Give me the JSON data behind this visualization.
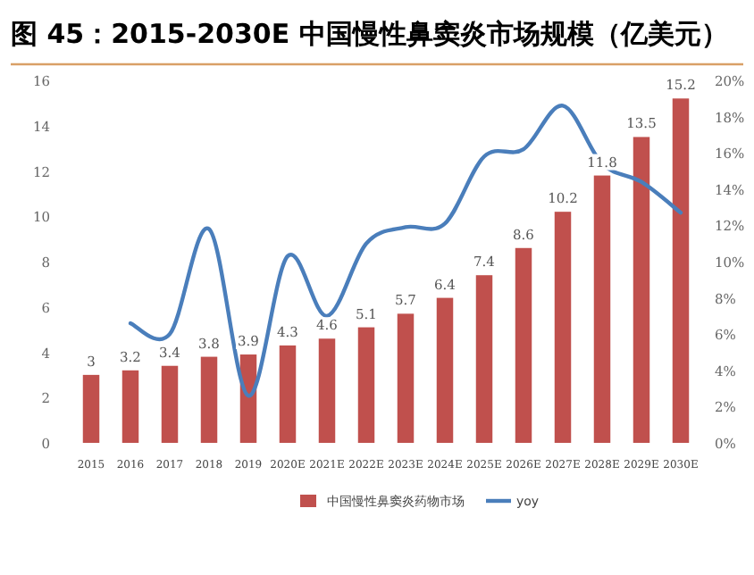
{
  "chart_data": {
    "type": "bar",
    "title": "图 45：2015-2030E 中国慢性鼻窦炎市场规模（亿美元）",
    "categories": [
      "2015",
      "2016",
      "2017",
      "2018",
      "2019",
      "2020E",
      "2021E",
      "2022E",
      "2023E",
      "2024E",
      "2025E",
      "2026E",
      "2027E",
      "2028E",
      "2029E",
      "2030E"
    ],
    "series": [
      {
        "name": "中国慢性鼻窦炎药物市场",
        "color": "#c0504d",
        "values": [
          3,
          3.2,
          3.4,
          3.8,
          3.9,
          4.3,
          4.6,
          5.1,
          5.7,
          6.4,
          7.4,
          8.6,
          10.2,
          11.8,
          13.5,
          15.2
        ],
        "value_labels": [
          "3",
          "3.2",
          "3.4",
          "3.8",
          "3.9",
          "4.3",
          "4.6",
          "5.1",
          "5.7",
          "6.4",
          "7.4",
          "8.6",
          "10.2",
          "11.8",
          "13.5",
          "15.2"
        ]
      },
      {
        "name": "yoy",
        "type": "line",
        "axis": "y2",
        "color": "#4a7ebb",
        "values": [
          null,
          6.6,
          6.0,
          11.8,
          2.6,
          10.3,
          7.0,
          11.0,
          11.9,
          12.1,
          15.8,
          16.2,
          18.6,
          15.4,
          14.4,
          12.7
        ]
      }
    ],
    "ylim": [
      0,
      16
    ],
    "yticks": [
      0,
      2,
      4,
      6,
      8,
      10,
      12,
      14,
      16
    ],
    "y2lim": [
      0,
      20
    ],
    "y2ticks": [
      {
        "value": 0,
        "label": "0%"
      },
      {
        "value": 2,
        "label": "2%"
      },
      {
        "value": 4,
        "label": "4%"
      },
      {
        "value": 6,
        "label": "6%"
      },
      {
        "value": 8,
        "label": "8%"
      },
      {
        "value": 10,
        "label": "10%"
      },
      {
        "value": 12,
        "label": "12%"
      },
      {
        "value": 14,
        "label": "14%"
      },
      {
        "value": 16,
        "label": "16%"
      },
      {
        "value": 18,
        "label": "18%"
      },
      {
        "value": 20,
        "label": "20%"
      }
    ],
    "legend": "bottom",
    "grid": false
  }
}
